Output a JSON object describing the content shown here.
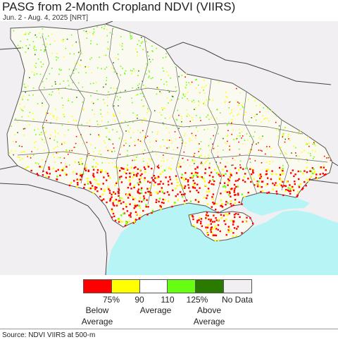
{
  "header": {
    "title": "PASG from 2-Month Cropland NDVI (VIIRS)",
    "subtitle": "Jun. 2 - Aug. 4, 2025 [NRT]"
  },
  "legend": {
    "swatches": [
      {
        "color": "#ff0000"
      },
      {
        "color": "#ffff00"
      },
      {
        "color": "#ffffff"
      },
      {
        "color": "#66ff11"
      },
      {
        "color": "#2a7a00"
      },
      {
        "color": "#f1eff2"
      }
    ],
    "ticks": [
      "75%",
      "90",
      "110",
      "125%",
      "No Data"
    ],
    "below_label": "Below\nAverage",
    "average_label": "Average",
    "above_label": "Above\nAverage"
  },
  "colors": {
    "sea": "#b6f4f6",
    "no_data": "#f1eff2",
    "border": "#555555",
    "below": "#ff0000",
    "slightly_below": "#ffff00",
    "above": "#66ff11",
    "far_above": "#2a7a00"
  },
  "footer": {
    "source": "Source: NDVI VIIRS at 500-m"
  }
}
